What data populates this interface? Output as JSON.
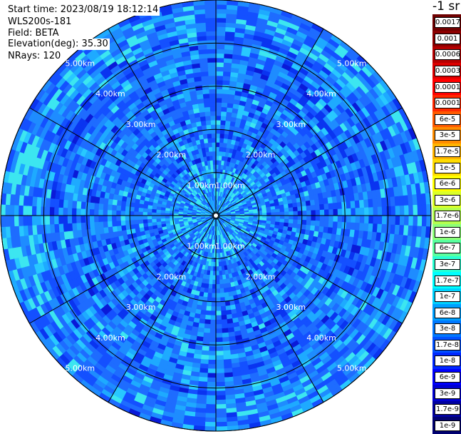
{
  "header": {
    "start_time": "Start time: 2023/08/19 18:12:14",
    "instrument": "WLS200s-181",
    "field": "Field: BETA",
    "elevation": "Elevation(deg): 35.30",
    "nrays": "NRays: 120"
  },
  "chart_data": {
    "type": "heatmap",
    "projection": "polar PPI",
    "field": "BETA",
    "range_rings_km": [
      1,
      2,
      3,
      4,
      5
    ],
    "ring_labels": [
      "1.00km",
      "2.00km",
      "3.00km",
      "4.00km",
      "5.00km"
    ],
    "max_range_km": 5.0,
    "spoke_count": 12,
    "n_rays": 120,
    "dominant_value_range": [
      "1.7e-9",
      "1.7e-7"
    ],
    "colorbar": {
      "unit": "-1 sr",
      "labels": [
        "0.0017",
        "0.001",
        "0.0006",
        "0.0003",
        "0.00017",
        "0.0001",
        "6e-5",
        "3e-5",
        "1.7e-5",
        "1e-5",
        "6e-6",
        "3e-6",
        "1.7e-6",
        "1e-6",
        "6e-7",
        "3e-7",
        "1.7e-7",
        "1e-7",
        "6e-8",
        "3e-8",
        "1.7e-8",
        "1e-8",
        "6e-9",
        "3e-9",
        "1.7e-9",
        "1e-9"
      ],
      "colors": [
        "#6e0000",
        "#8c0000",
        "#b40000",
        "#dc0000",
        "#ff0000",
        "#ff2800",
        "#ff5a00",
        "#ff8c00",
        "#ffb400",
        "#ffdc00",
        "#ffff00",
        "#dcff28",
        "#b4ff50",
        "#8cff78",
        "#5affa0",
        "#28ffd2",
        "#00ffff",
        "#00d2ff",
        "#00a0ff",
        "#0078ff",
        "#0050ff",
        "#0028ff",
        "#0000ff",
        "#0000d2",
        "#0000a0",
        "#000070"
      ]
    }
  }
}
